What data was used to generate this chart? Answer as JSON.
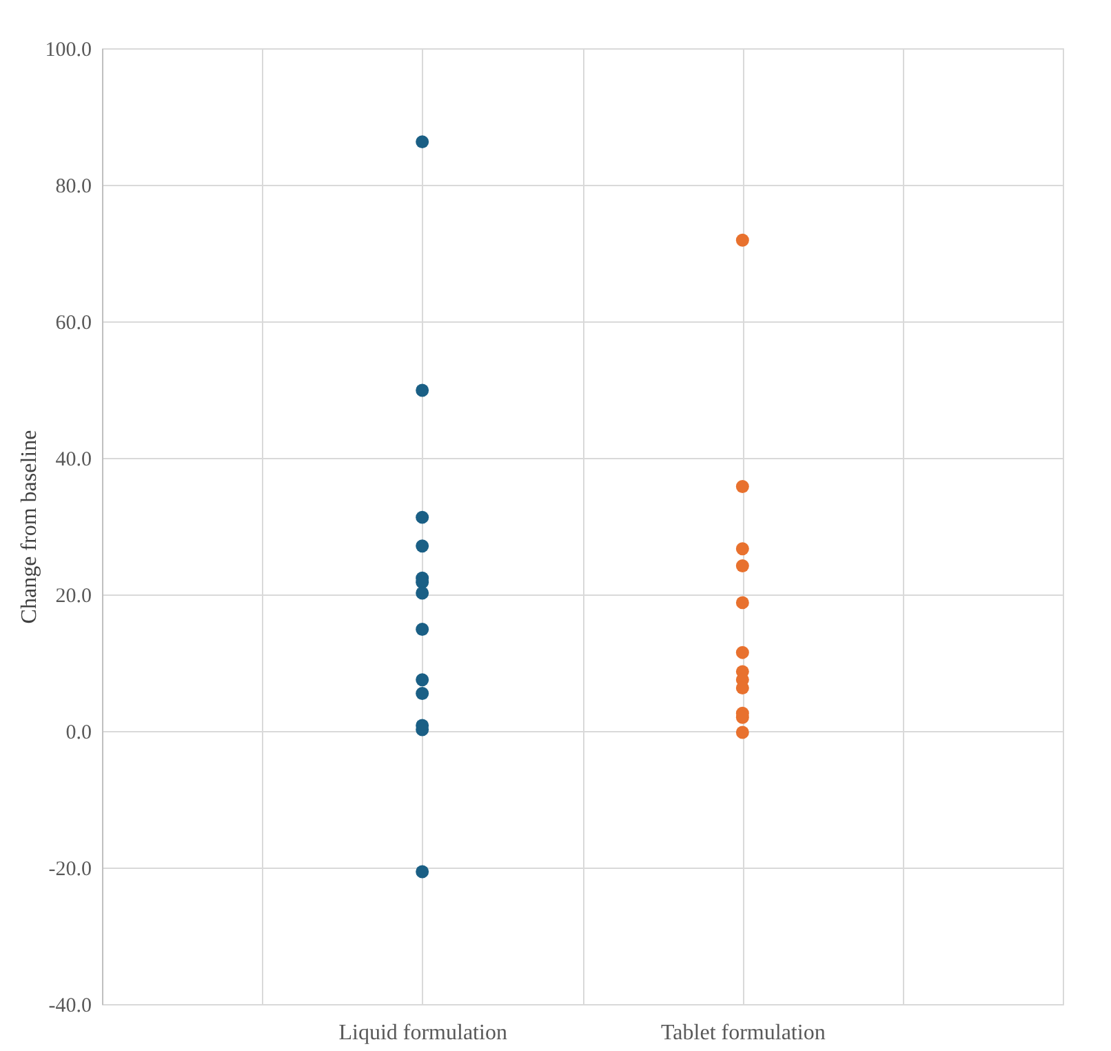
{
  "chart_data": {
    "type": "scatter",
    "ylabel": "Change from baseline",
    "categories": [
      "Liquid formulation",
      "Tablet formulation"
    ],
    "series": [
      {
        "type": "scatter",
        "color": "#1a5f85",
        "x": [
          "Liquid formulation",
          "Liquid formulation",
          "Liquid formulation",
          "Liquid formulation",
          "Liquid formulation",
          "Liquid formulation",
          "Liquid formulation",
          "Liquid formulation",
          "Liquid formulation",
          "Liquid formulation",
          "Liquid formulation",
          "Liquid formulation",
          "Liquid formulation"
        ],
        "values": [
          86.3,
          49.9,
          31.3,
          27.1,
          22.4,
          21.8,
          20.2,
          14.9,
          7.5,
          5.5,
          0.8,
          0.2,
          -20.6
        ]
      },
      {
        "type": "scatter",
        "color": "#e8712e",
        "x": [
          "Tablet formulation",
          "Tablet formulation",
          "Tablet formulation",
          "Tablet formulation",
          "Tablet formulation",
          "Tablet formulation",
          "Tablet formulation",
          "Tablet formulation",
          "Tablet formulation",
          "Tablet formulation",
          "Tablet formulation",
          "Tablet formulation"
        ],
        "values": [
          71.9,
          35.8,
          26.7,
          24.2,
          18.8,
          11.5,
          8.7,
          7.5,
          6.3,
          2.6,
          2.0,
          -0.2
        ]
      }
    ],
    "ylim": [
      -40,
      100
    ],
    "yticks": [
      {
        "value": -40,
        "label": "-40.0"
      },
      {
        "value": -20,
        "label": "-20.0"
      },
      {
        "value": 0,
        "label": "0.0"
      },
      {
        "value": 20,
        "label": "20.0"
      },
      {
        "value": 40,
        "label": "40.0"
      },
      {
        "value": 60,
        "label": "60.0"
      },
      {
        "value": 80,
        "label": "80.0"
      },
      {
        "value": 100,
        "label": "100.0"
      }
    ],
    "grid": true,
    "marker": "circle",
    "legend": false
  }
}
